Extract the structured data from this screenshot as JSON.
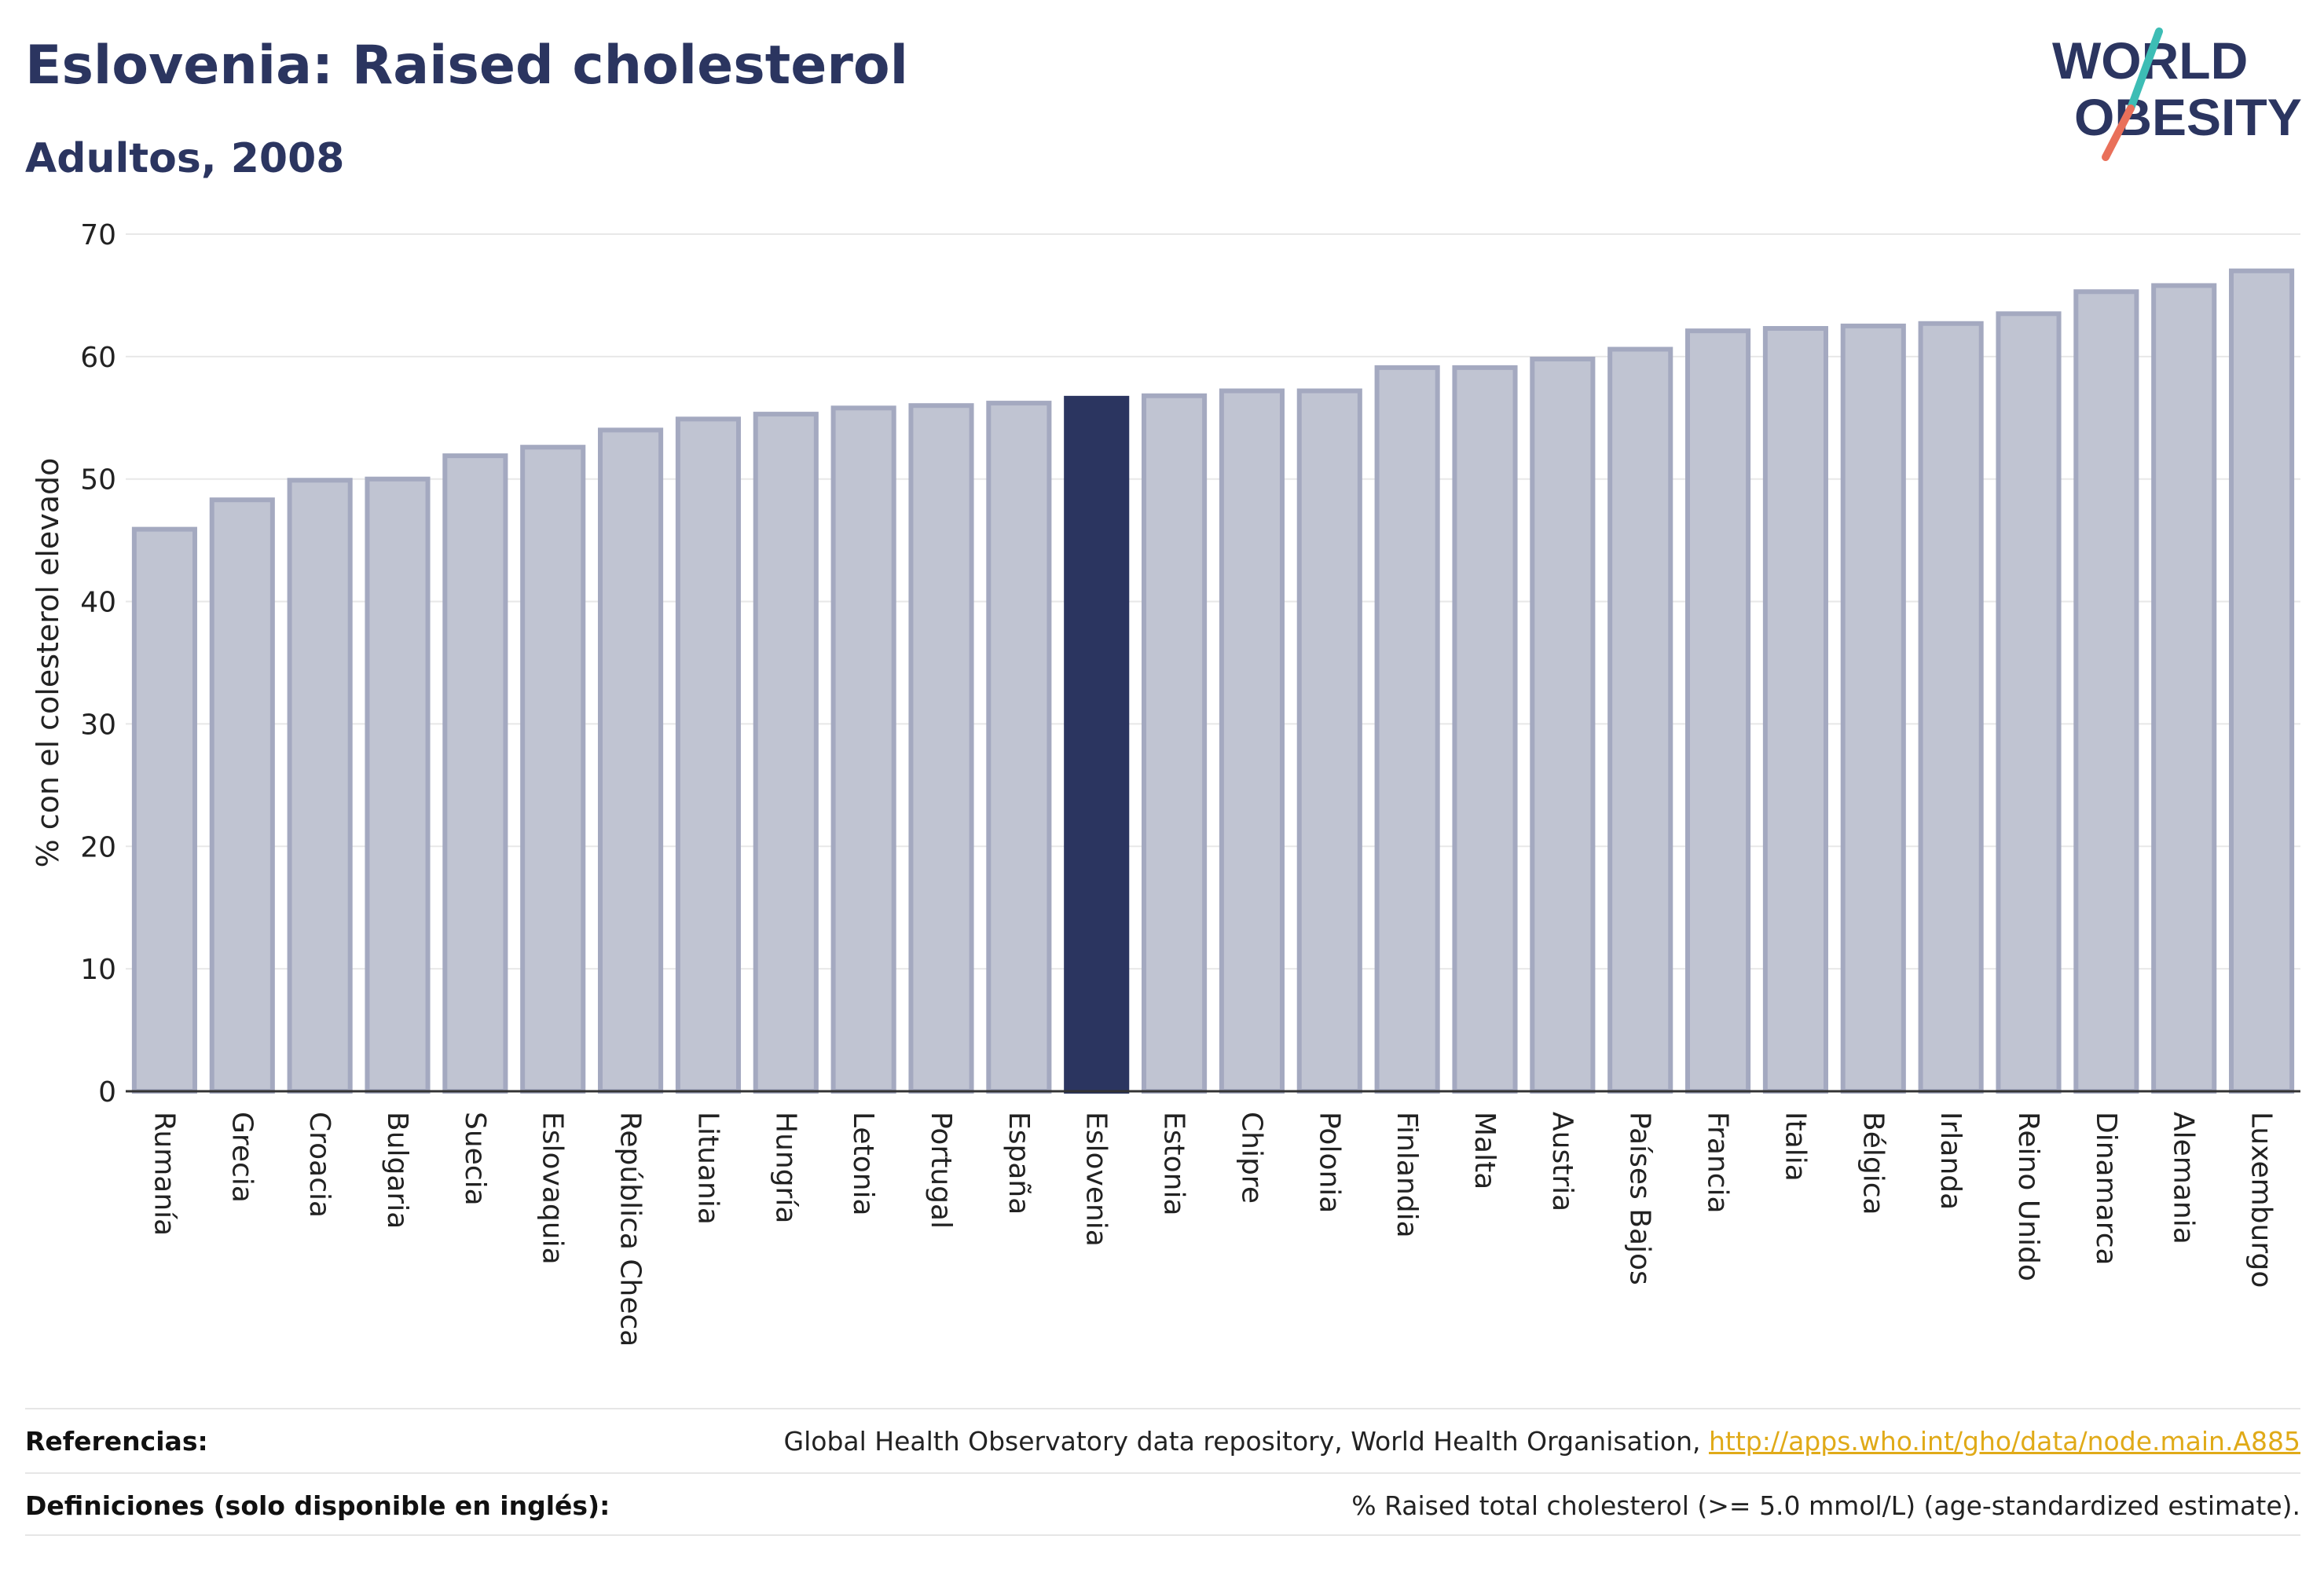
{
  "header": {
    "title": "Eslovenia: Raised cholesterol",
    "subtitle": "Adultos, 2008"
  },
  "logo": {
    "line1": "WORLD",
    "line2": "OBESITY",
    "colors": {
      "text": "#2b3560",
      "slash_teal": "#3dbdb5",
      "slash_coral": "#e9705a"
    }
  },
  "footer": {
    "references_label": "Referencias:",
    "references_text": "Global Health Observatory data repository, World Health Organisation, ",
    "references_link": "http://apps.who.int/gho/data/node.main.A885",
    "definitions_label": "Definiciones (solo disponible en inglés):",
    "definitions_text": "% Raised total cholesterol (>= 5.0 mmol/L) (age-standardized estimate)."
  },
  "colors": {
    "bar_fill": "#c0c4d2",
    "bar_stroke": "#a4a9c0",
    "highlight": "#2b3560",
    "grid": "#e8e8e8",
    "axis_text": "#222222"
  },
  "chart_data": {
    "type": "bar",
    "title": "Eslovenia: Raised cholesterol",
    "subtitle": "Adultos, 2008",
    "xlabel": "",
    "ylabel": "% con el colesterol elevado",
    "ylim": [
      0,
      70
    ],
    "yticks": [
      0,
      10,
      20,
      30,
      40,
      50,
      60,
      70
    ],
    "grid": true,
    "highlight_category": "Eslovenia",
    "categories": [
      "Rumanía",
      "Grecia",
      "Croacia",
      "Bulgaria",
      "Suecia",
      "Eslovaquia",
      "República Checa",
      "Lituania",
      "Hungría",
      "Letonia",
      "Portugal",
      "España",
      "Eslovenia",
      "Estonia",
      "Chipre",
      "Polonia",
      "Finlandia",
      "Malta",
      "Austria",
      "Países Bajos",
      "Francia",
      "Italia",
      "Bélgica",
      "Irlanda",
      "Reino Unido",
      "Dinamarca",
      "Alemania",
      "Luxemburgo"
    ],
    "values": [
      45.9,
      48.3,
      49.9,
      50.0,
      51.9,
      52.6,
      54.0,
      54.9,
      55.3,
      55.8,
      56.0,
      56.2,
      56.6,
      56.8,
      57.2,
      57.2,
      59.1,
      59.1,
      59.8,
      60.6,
      62.1,
      62.3,
      62.5,
      62.7,
      63.5,
      65.3,
      65.8,
      67.0
    ]
  }
}
